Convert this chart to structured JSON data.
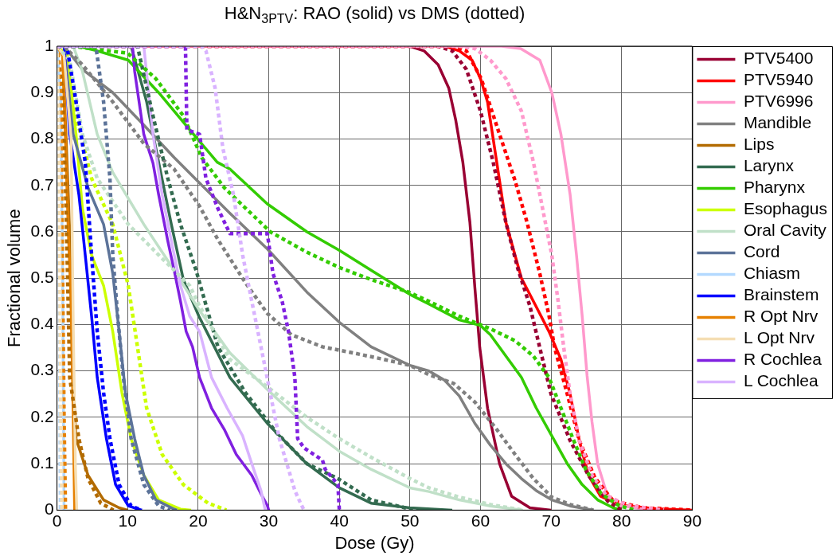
{
  "chart_data": {
    "type": "line",
    "title": "H&N$_{3PTV}$: RAO (solid) vs DMS (dotted)",
    "xlabel": "Dose (Gy)",
    "ylabel": "Fractional volume",
    "xlim": [
      0,
      90
    ],
    "xticks": [
      0,
      10,
      20,
      30,
      40,
      50,
      60,
      70,
      80,
      90
    ],
    "ylim": [
      0,
      1
    ],
    "yticks": [
      0,
      0.1,
      0.2,
      0.3,
      0.4,
      0.5,
      0.6,
      0.7,
      0.8,
      0.9,
      1
    ],
    "grid": true,
    "legend": "right",
    "marker": "none",
    "series": [
      {
        "name": "PTV5400",
        "color": "#990033",
        "line_style": "solid",
        "x": [
          0,
          50,
          52,
          54,
          55.5,
          56.5,
          57.5,
          58.5,
          59.2,
          59.9,
          61,
          62.7,
          64.4,
          67,
          70
        ],
        "values": [
          1,
          1,
          0.99,
          0.96,
          0.91,
          0.84,
          0.75,
          0.62,
          0.48,
          0.35,
          0.22,
          0.1,
          0.03,
          0.005,
          0
        ]
      },
      {
        "name": "PTV5940",
        "color": "#ff0000",
        "line_style": "solid",
        "x": [
          0,
          55,
          57,
          58.8,
          60,
          61,
          62.3,
          63.6,
          65.8,
          67.5,
          69.7,
          71.4,
          72.7,
          74,
          75.3,
          77,
          80,
          85,
          90
        ],
        "values": [
          1,
          1,
          0.99,
          0.97,
          0.93,
          0.88,
          0.75,
          0.62,
          0.5,
          0.45,
          0.385,
          0.325,
          0.25,
          0.15,
          0.075,
          0.03,
          0.01,
          0.003,
          0
        ]
      },
      {
        "name": "PTV6996",
        "color": "#ff99cc",
        "line_style": "solid",
        "x": [
          0,
          63,
          65.7,
          68.4,
          70.1,
          71.4,
          72.7,
          73.6,
          74.4,
          75.1,
          75.8,
          76.6,
          77.9,
          79.7,
          84
        ],
        "values": [
          1,
          1,
          0.995,
          0.97,
          0.9,
          0.81,
          0.68,
          0.55,
          0.42,
          0.29,
          0.19,
          0.1,
          0.035,
          0.01,
          0
        ]
      },
      {
        "name": "Mandible",
        "color": "#808080",
        "line_style": "solid",
        "x": [
          0,
          1,
          3.6,
          7.9,
          12.3,
          16.6,
          20.2,
          24.5,
          29.8,
          35.4,
          40,
          44.5,
          50,
          52.7,
          54.9,
          57,
          59.2,
          61.4,
          63.6,
          65.8,
          67.9,
          70.1,
          72.7,
          76
        ],
        "values": [
          1,
          1,
          0.95,
          0.9,
          0.83,
          0.76,
          0.705,
          0.64,
          0.563,
          0.47,
          0.405,
          0.352,
          0.312,
          0.3,
          0.28,
          0.246,
          0.187,
          0.14,
          0.1,
          0.068,
          0.042,
          0.022,
          0.009,
          0
        ]
      },
      {
        "name": "Lips",
        "color": "#b36b00",
        "line_style": "solid",
        "x": [
          0,
          0.8,
          1.3,
          1.8,
          2,
          2.2,
          2.7,
          4.4,
          6.6,
          8.8,
          10
        ],
        "values": [
          1,
          0.98,
          0.8,
          0.6,
          0.45,
          0.3,
          0.154,
          0.075,
          0.022,
          0.005,
          0
        ]
      },
      {
        "name": "Larynx",
        "color": "#336b50",
        "line_style": "solid",
        "x": [
          0,
          10.5,
          12.7,
          14.4,
          16.2,
          17.9,
          20.1,
          22.7,
          24.5,
          29.8,
          35.4,
          40,
          44.5,
          50,
          56
        ],
        "values": [
          1,
          1,
          0.88,
          0.75,
          0.616,
          0.497,
          0.418,
          0.34,
          0.286,
          0.187,
          0.1,
          0.048,
          0.015,
          0.005,
          0
        ]
      },
      {
        "name": "Pharynx",
        "color": "#33cc00",
        "line_style": "solid",
        "x": [
          0,
          3,
          5.7,
          10.1,
          14.4,
          18.8,
          22.7,
          24.5,
          29.8,
          35.4,
          40,
          44.5,
          50,
          52.7,
          57,
          60,
          61.4,
          63.6,
          65.8,
          67.9,
          70.1,
          72.3,
          74.4,
          76.6,
          78.8,
          80
        ],
        "values": [
          1,
          1,
          0.99,
          0.97,
          0.9,
          0.82,
          0.75,
          0.735,
          0.66,
          0.6,
          0.56,
          0.517,
          0.465,
          0.444,
          0.41,
          0.398,
          0.378,
          0.332,
          0.286,
          0.22,
          0.16,
          0.1,
          0.055,
          0.022,
          0.005,
          0
        ]
      },
      {
        "name": "Esophagus",
        "color": "#ccff00",
        "line_style": "solid",
        "x": [
          0,
          1.5,
          2.7,
          3.6,
          4.9,
          6.6,
          7.9,
          9.2,
          10.5,
          12.3,
          14.4,
          17.5,
          19
        ],
        "values": [
          1,
          0.98,
          0.81,
          0.65,
          0.55,
          0.484,
          0.385,
          0.253,
          0.154,
          0.075,
          0.022,
          0.002,
          0
        ]
      },
      {
        "name": "Oral Cavity",
        "color": "#c0e0c8",
        "line_style": "solid",
        "x": [
          0,
          2.3,
          3.6,
          5.7,
          7.9,
          12.3,
          16.6,
          20.2,
          24.5,
          29.8,
          35.4,
          40,
          44.5,
          50,
          52.7,
          57,
          61.4,
          66
        ],
        "values": [
          1,
          1,
          0.946,
          0.81,
          0.728,
          0.616,
          0.517,
          0.43,
          0.339,
          0.26,
          0.18,
          0.127,
          0.088,
          0.048,
          0.04,
          0.022,
          0.009,
          0
        ]
      },
      {
        "name": "Cord",
        "color": "#5c7399",
        "line_style": "solid",
        "x": [
          0,
          1,
          2.3,
          4.4,
          6.6,
          7.9,
          8.8,
          9.7,
          11,
          12.3,
          14,
          16.6,
          17
        ],
        "values": [
          1,
          1,
          0.81,
          0.695,
          0.616,
          0.51,
          0.385,
          0.253,
          0.154,
          0.075,
          0.022,
          0.002,
          0
        ]
      },
      {
        "name": "Chiasm",
        "color": "#b3d9ff",
        "line_style": "solid",
        "x": [
          0,
          0.5,
          0.8,
          1
        ],
        "values": [
          1,
          0.9,
          0.5,
          0
        ]
      },
      {
        "name": "Brainstem",
        "color": "#0000ff",
        "line_style": "solid",
        "x": [
          0,
          1,
          1.8,
          3.1,
          4,
          4.9,
          5.7,
          7,
          8.3,
          10.1,
          12
        ],
        "values": [
          1,
          1,
          0.81,
          0.68,
          0.55,
          0.418,
          0.286,
          0.154,
          0.055,
          0.009,
          0
        ]
      },
      {
        "name": "R Opt Nrv",
        "color": "#e68000",
        "line_style": "solid",
        "x": [
          0,
          0.8,
          1.2,
          1.6,
          2,
          2.3,
          2.5
        ],
        "values": [
          1,
          0.98,
          0.8,
          0.6,
          0.45,
          0.2,
          0
        ]
      },
      {
        "name": "L Opt Nrv",
        "color": "#f5deb3",
        "line_style": "solid",
        "x": [
          0,
          1,
          2,
          2.3,
          2.6,
          2.8
        ],
        "values": [
          1,
          0.98,
          0.8,
          0.4,
          0.1,
          0
        ]
      },
      {
        "name": "R Cochlea",
        "color": "#8020e0",
        "line_style": "solid",
        "x": [
          0,
          10.7,
          11,
          12.3,
          13.6,
          14.4,
          15.7,
          16.6,
          17.5,
          18.3,
          19.2,
          20.2,
          21.9,
          23.7,
          25.4,
          27.6,
          28.9,
          29.8,
          30
        ],
        "values": [
          1,
          1,
          0.946,
          0.81,
          0.748,
          0.68,
          0.58,
          0.517,
          0.45,
          0.385,
          0.352,
          0.286,
          0.22,
          0.174,
          0.12,
          0.075,
          0.035,
          0.01,
          0
        ]
      },
      {
        "name": "L Cochlea",
        "color": "#d9b3ff",
        "line_style": "solid",
        "x": [
          0,
          12.3,
          13.6,
          14.9,
          16.2,
          17.5,
          18.8,
          20.2,
          21.9,
          24.1,
          26.3,
          27.6,
          28.9,
          29.5
        ],
        "values": [
          1,
          1,
          0.81,
          0.68,
          0.58,
          0.484,
          0.418,
          0.385,
          0.286,
          0.22,
          0.16,
          0.1,
          0.042,
          0
        ]
      },
      {
        "color": "#990033",
        "line_style": "dotted",
        "x": [
          0,
          54,
          56,
          58,
          60,
          61.8,
          63.6,
          65.3,
          67,
          68.4,
          70,
          72.7,
          75.3,
          78,
          80
        ],
        "values": [
          1,
          1,
          0.99,
          0.95,
          0.86,
          0.75,
          0.62,
          0.52,
          0.44,
          0.35,
          0.25,
          0.15,
          0.075,
          0.02,
          0
        ]
      },
      {
        "color": "#ff0000",
        "line_style": "dotted",
        "x": [
          0,
          56,
          58,
          60.1,
          62.7,
          64.9,
          66.6,
          68.4,
          69.7,
          70.5,
          72.3,
          74,
          76.2,
          78.8,
          83,
          90
        ],
        "values": [
          1,
          1,
          0.99,
          0.93,
          0.81,
          0.71,
          0.62,
          0.51,
          0.42,
          0.35,
          0.25,
          0.15,
          0.07,
          0.02,
          0.005,
          0
        ]
      },
      {
        "color": "#ff99cc",
        "line_style": "dotted",
        "x": [
          0,
          57,
          59.2,
          61.4,
          63.6,
          65.8,
          67.5,
          68.8,
          70.1,
          71,
          71.8,
          72.7,
          74,
          75.8,
          77.9,
          81,
          86
        ],
        "values": [
          1,
          1,
          0.995,
          0.97,
          0.93,
          0.86,
          0.75,
          0.65,
          0.55,
          0.45,
          0.35,
          0.25,
          0.15,
          0.075,
          0.03,
          0.01,
          0
        ]
      },
      {
        "color": "#808080",
        "line_style": "dotted",
        "x": [
          0,
          1,
          3.6,
          7.9,
          12.3,
          16.6,
          20.2,
          22.8,
          26.7,
          29.8,
          33.2,
          37.6,
          41.9,
          46.3,
          50,
          52.7,
          56.2,
          59.2,
          62.3,
          64.9,
          67.5,
          70.1,
          72.7,
          76
        ],
        "values": [
          1,
          1,
          0.96,
          0.88,
          0.79,
          0.735,
          0.655,
          0.583,
          0.49,
          0.424,
          0.378,
          0.352,
          0.339,
          0.325,
          0.312,
          0.292,
          0.273,
          0.233,
          0.174,
          0.12,
          0.068,
          0.028,
          0.012,
          0
        ]
      },
      {
        "color": "#b36b00",
        "line_style": "dotted",
        "x": [
          0,
          0.8,
          1.2,
          1.5,
          1.8,
          3.1,
          4.4,
          6.2,
          8
        ],
        "values": [
          1,
          0.9,
          0.7,
          0.5,
          0.286,
          0.154,
          0.068,
          0.015,
          0
        ]
      },
      {
        "color": "#336b50",
        "line_style": "dotted",
        "x": [
          0,
          11.4,
          13.6,
          15.7,
          17.5,
          19.7,
          22.8,
          26.7,
          31.1,
          35.4,
          39.8,
          44.5,
          50.2,
          52
        ],
        "values": [
          1,
          1,
          0.85,
          0.715,
          0.616,
          0.517,
          0.352,
          0.253,
          0.167,
          0.1,
          0.068,
          0.022,
          0.002,
          0
        ]
      },
      {
        "color": "#33cc00",
        "line_style": "dotted",
        "x": [
          0,
          2,
          10,
          14,
          17.9,
          20.5,
          23.7,
          30.2,
          35.4,
          40,
          44.5,
          49.8,
          52.7,
          57,
          61.4,
          64.9,
          67.5,
          69.7,
          71.4,
          73.1,
          74.9,
          77.1,
          79.7,
          82
        ],
        "values": [
          1,
          1,
          0.985,
          0.93,
          0.85,
          0.76,
          0.695,
          0.6,
          0.556,
          0.523,
          0.497,
          0.47,
          0.45,
          0.418,
          0.391,
          0.365,
          0.332,
          0.286,
          0.22,
          0.154,
          0.088,
          0.035,
          0.009,
          0
        ]
      },
      {
        "color": "#ccff00",
        "line_style": "dotted",
        "x": [
          0,
          1.4,
          2.7,
          4.9,
          7.9,
          10.1,
          11.4,
          12.7,
          14.9,
          17.9,
          21.4,
          24
        ],
        "values": [
          1,
          1,
          0.85,
          0.715,
          0.616,
          0.484,
          0.352,
          0.22,
          0.12,
          0.055,
          0.015,
          0
        ]
      },
      {
        "color": "#c0e0c8",
        "line_style": "dotted",
        "x": [
          0,
          1.8,
          3.6,
          5.7,
          10.1,
          14.4,
          18.8,
          20.2,
          24.5,
          29.8,
          35.4,
          40,
          44.5,
          50,
          52.7,
          57,
          61.4,
          66
        ],
        "values": [
          1,
          0.97,
          0.81,
          0.715,
          0.616,
          0.55,
          0.484,
          0.44,
          0.325,
          0.266,
          0.2,
          0.154,
          0.114,
          0.068,
          0.048,
          0.028,
          0.012,
          0
        ]
      },
      {
        "color": "#5c7399",
        "line_style": "dotted",
        "x": [
          0,
          5.5,
          6.6,
          7.5,
          7.9,
          8.6,
          9.4,
          10.5,
          12.3,
          14.4,
          16
        ],
        "values": [
          1,
          1,
          0.88,
          0.715,
          0.55,
          0.418,
          0.286,
          0.154,
          0.055,
          0.009,
          0
        ]
      },
      {
        "color": "#b3d9ff",
        "line_style": "dotted",
        "x": [
          0,
          0.3,
          0.5
        ],
        "values": [
          1,
          0.7,
          0
        ]
      },
      {
        "color": "#0000ff",
        "line_style": "dotted",
        "x": [
          0,
          1.4,
          2.7,
          4,
          4.9,
          5.7,
          6.6,
          7.5,
          8.8,
          10.5,
          12
        ],
        "values": [
          1,
          1,
          0.88,
          0.75,
          0.55,
          0.385,
          0.253,
          0.154,
          0.055,
          0.009,
          0
        ]
      },
      {
        "color": "#e68000",
        "line_style": "dotted",
        "x": [
          0,
          0.5,
          0.8,
          1,
          1.2
        ],
        "values": [
          1,
          0.9,
          0.5,
          0.2,
          0
        ]
      },
      {
        "color": "#f5deb3",
        "line_style": "dotted",
        "x": [
          0,
          0.3,
          0.5,
          0.7
        ],
        "values": [
          1,
          0.8,
          0.3,
          0
        ]
      },
      {
        "color": "#8020e0",
        "line_style": "dotted",
        "x": [
          0,
          18.2,
          18.4,
          20.2,
          21.1,
          22.8,
          24.5,
          29.8,
          30.6,
          31.9,
          32.8,
          33.7,
          34.1,
          35,
          37.6,
          38,
          39.8,
          40
        ],
        "values": [
          1,
          1,
          0.82,
          0.81,
          0.715,
          0.65,
          0.596,
          0.596,
          0.51,
          0.45,
          0.385,
          0.286,
          0.154,
          0.134,
          0.108,
          0.088,
          0.055,
          0
        ]
      },
      {
        "color": "#d9b3ff",
        "line_style": "dotted",
        "x": [
          0,
          20.5,
          21.1,
          22.4,
          23.5,
          25,
          26.3,
          27.6,
          28.9,
          30.2,
          31.5,
          32.8,
          33.7,
          34.5,
          35
        ],
        "values": [
          1,
          1,
          0.99,
          0.91,
          0.78,
          0.68,
          0.55,
          0.45,
          0.352,
          0.253,
          0.154,
          0.088,
          0.042,
          0.015,
          0
        ]
      }
    ]
  }
}
